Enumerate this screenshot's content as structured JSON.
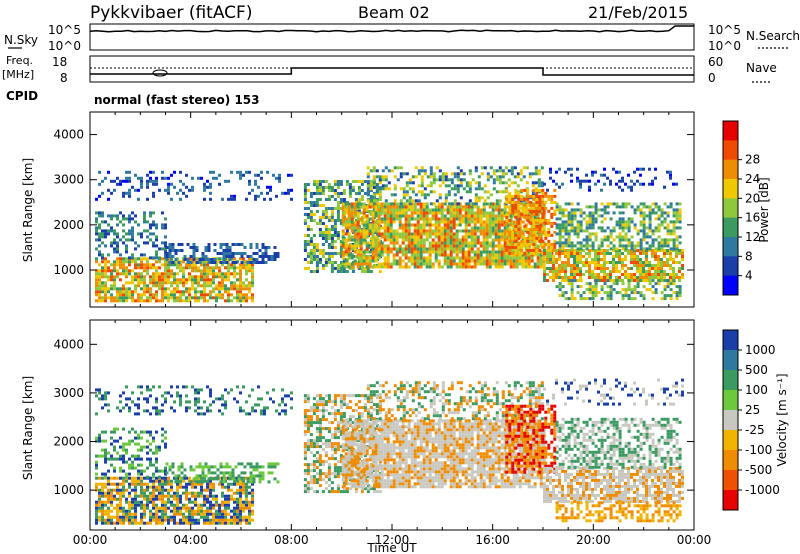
{
  "header": {
    "station": "Pykkvibaer (fitACF)",
    "beam": "Beam 02",
    "date": "21/Feb/2015"
  },
  "panels": {
    "nsky": {
      "label": "N.Sky",
      "tick_top": "10^5",
      "tick_bottom": "10^0",
      "right_label": "N.Search",
      "right_tick_top": "10^5",
      "right_tick_bottom": "10^0"
    },
    "freq": {
      "label_line1": "Freq.",
      "label_line2": "[MHz]",
      "tick_top": "18",
      "tick_bottom": "8",
      "right_label": "Nave",
      "right_tick_top": "60",
      "right_tick_bottom": "0"
    },
    "cpid": {
      "label": "CPID",
      "value": "normal (fast stereo) 153"
    }
  },
  "colors": {
    "power_scale": [
      "#0000ff",
      "#1a3fa8",
      "#2f78a0",
      "#3a9a60",
      "#8fc83c",
      "#f0c800",
      "#f08c00",
      "#f04a00",
      "#e60000"
    ],
    "velocity_scale": [
      "#1a3fa8",
      "#2f78a0",
      "#3a9a60",
      "#6cc83c",
      "#c8c8c0",
      "#f0b400",
      "#f08c00",
      "#f05000",
      "#e60000"
    ]
  },
  "chart_data": [
    {
      "type": "heatmap",
      "quantity": "power",
      "ylabel": "Slant Range [km]",
      "xlabel": "",
      "colorbar_label": "Power [dB]",
      "colorbar_ticks": [
        "4",
        "8",
        "12",
        "16",
        "20",
        "24",
        "28"
      ],
      "x_ticks": [
        "00:00",
        "04:00",
        "08:00",
        "12:00",
        "16:00",
        "20:00",
        "00:00"
      ],
      "y_ticks": [
        "1000",
        "2000",
        "3000",
        "4000"
      ],
      "xlim_hours": [
        0,
        24
      ],
      "ylim_km": [
        180,
        4500
      ]
    },
    {
      "type": "heatmap",
      "quantity": "velocity",
      "ylabel": "Slant Range [km]",
      "xlabel": "Time UT",
      "colorbar_label": "Velocity [m s⁻¹]",
      "colorbar_ticks": [
        "1000",
        "500",
        "100",
        "25",
        "-25",
        "-100",
        "-500",
        "-1000"
      ],
      "x_ticks": [
        "00:00",
        "04:00",
        "08:00",
        "12:00",
        "16:00",
        "20:00",
        "00:00"
      ],
      "y_ticks": [
        "1000",
        "2000",
        "3000",
        "4000"
      ],
      "xlim_hours": [
        0,
        24
      ],
      "ylim_km": [
        180,
        4500
      ]
    }
  ]
}
